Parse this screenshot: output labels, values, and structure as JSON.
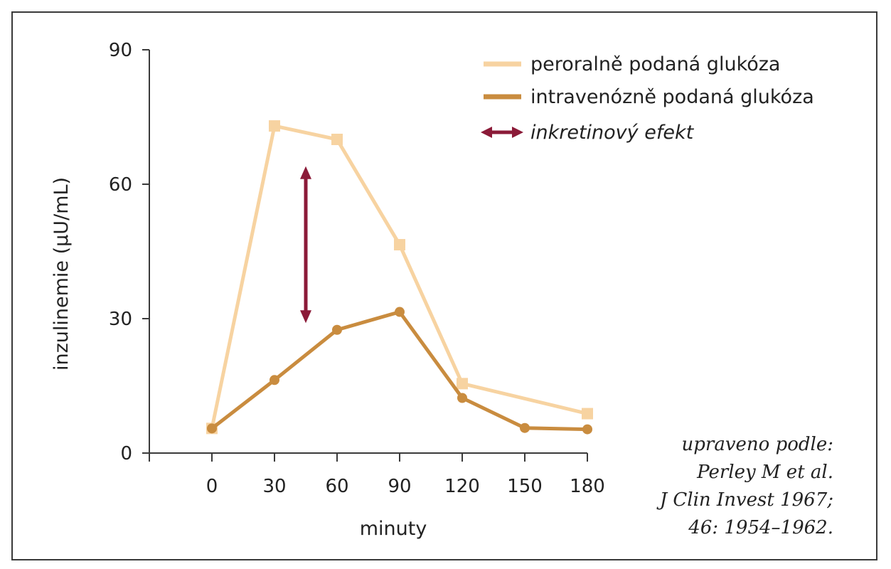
{
  "chart_data": {
    "type": "line",
    "title": "",
    "xlabel": "minuty",
    "ylabel": "inzulinemie (µU/mL)",
    "x": [
      0,
      30,
      60,
      90,
      120,
      150,
      180
    ],
    "x_ticks": [
      "0",
      "30",
      "60",
      "90",
      "120",
      "150",
      "180"
    ],
    "y_ticks": [
      "0",
      "30",
      "60",
      "90"
    ],
    "xlim": [
      -30,
      180
    ],
    "ylim": [
      0,
      90
    ],
    "grid": false,
    "legend_position": "top-right",
    "series": [
      {
        "name": "peroralně podaná glukóza",
        "x": [
          0,
          30,
          60,
          90,
          120,
          180
        ],
        "values": [
          5.5,
          73,
          70,
          46.5,
          15.5,
          8.8
        ],
        "color": "#f7d3a1",
        "marker": "square"
      },
      {
        "name": "intravenózně podaná glukóza",
        "x": [
          0,
          30,
          60,
          90,
          120,
          150,
          180
        ],
        "values": [
          5.5,
          16.3,
          27.5,
          31.5,
          12.3,
          5.6,
          5.3
        ],
        "color": "#c98c3f",
        "marker": "circle"
      }
    ],
    "annotations": [
      {
        "type": "double-arrow",
        "label": "inkretinový efekt",
        "x": 45,
        "y_from": 29,
        "y_to": 64,
        "color": "#8b1a38"
      }
    ],
    "source_lines": [
      "upraveno podle:",
      "Perley M et al.",
      "J Clin Invest 1967;",
      "46: 1954–1962."
    ]
  }
}
